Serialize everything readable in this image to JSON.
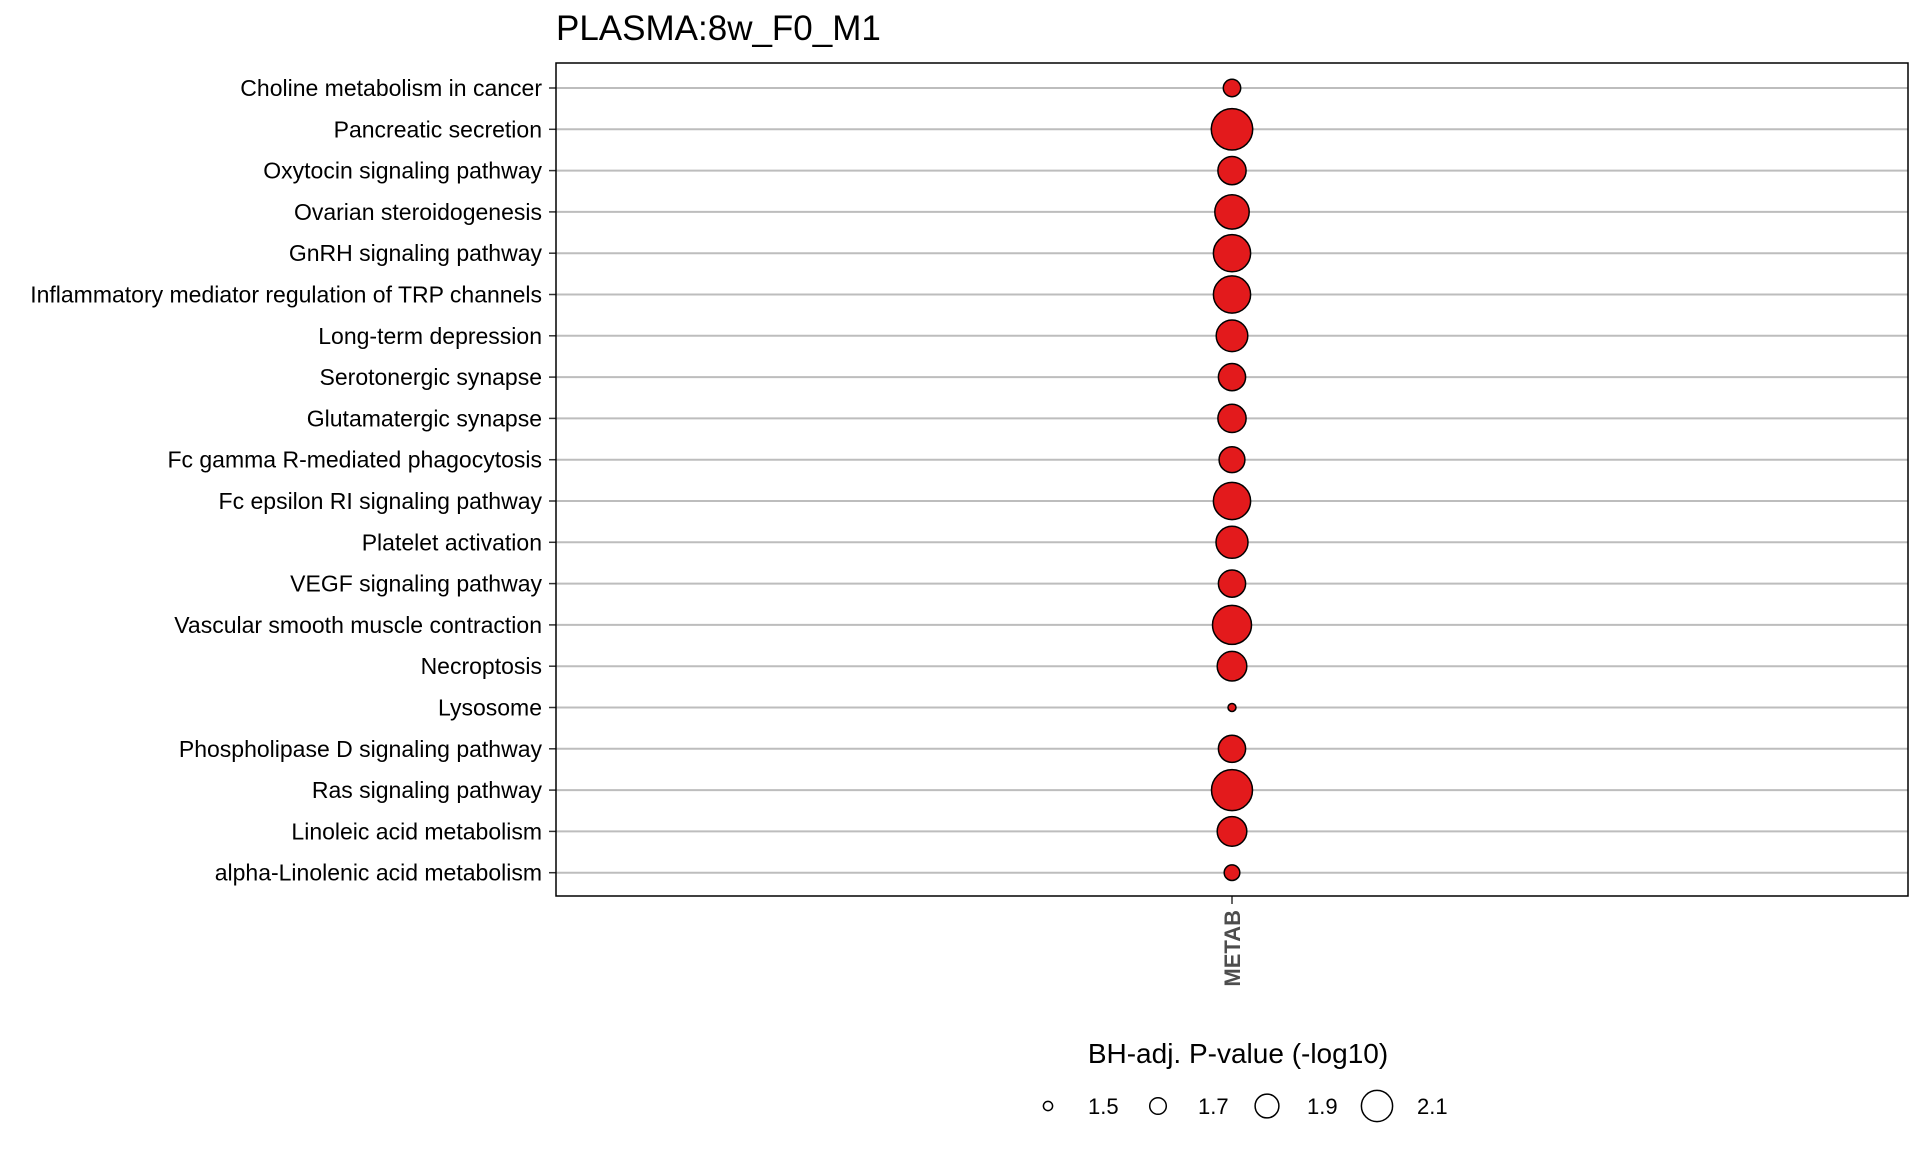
{
  "chart_data": {
    "type": "scatter",
    "title": "PLASMA:8w_F0_M1",
    "x_categories": [
      "METAB"
    ],
    "y_categories": [
      "Choline metabolism in cancer",
      "Pancreatic secretion",
      "Oxytocin signaling pathway",
      "Ovarian steroidogenesis",
      "GnRH signaling pathway",
      "Inflammatory mediator regulation of TRP channels",
      "Long-term depression",
      "Serotonergic synapse",
      "Glutamatergic synapse",
      "Fc gamma R-mediated phagocytosis",
      "Fc epsilon RI signaling pathway",
      "Platelet activation",
      "VEGF signaling pathway",
      "Vascular smooth muscle contraction",
      "Necroptosis",
      "Lysosome",
      "Phospholipase D signaling pathway",
      "Ras signaling pathway",
      "Linoleic acid metabolism",
      "alpha-Linolenic acid metabolism"
    ],
    "size_variable": "BH-adj. P-value (-log10)",
    "points": [
      {
        "x": "METAB",
        "y": "Choline metabolism in cancer",
        "size_value": 1.62
      },
      {
        "x": "METAB",
        "y": "Pancreatic secretion",
        "size_value": 2.13
      },
      {
        "x": "METAB",
        "y": "Oxytocin signaling pathway",
        "size_value": 1.85
      },
      {
        "x": "METAB",
        "y": "Ovarian steroidogenesis",
        "size_value": 1.98
      },
      {
        "x": "METAB",
        "y": "GnRH signaling pathway",
        "size_value": 2.04
      },
      {
        "x": "METAB",
        "y": "Inflammatory mediator regulation of TRP channels",
        "size_value": 2.04
      },
      {
        "x": "METAB",
        "y": "Long-term depression",
        "size_value": 1.92
      },
      {
        "x": "METAB",
        "y": "Serotonergic synapse",
        "size_value": 1.83
      },
      {
        "x": "METAB",
        "y": "Glutamatergic synapse",
        "size_value": 1.85
      },
      {
        "x": "METAB",
        "y": "Fc gamma R-mediated phagocytosis",
        "size_value": 1.8
      },
      {
        "x": "METAB",
        "y": "Fc epsilon RI signaling pathway",
        "size_value": 2.04
      },
      {
        "x": "METAB",
        "y": "Platelet activation",
        "size_value": 1.93
      },
      {
        "x": "METAB",
        "y": "VEGF signaling pathway",
        "size_value": 1.83
      },
      {
        "x": "METAB",
        "y": "Vascular smooth muscle contraction",
        "size_value": 2.08
      },
      {
        "x": "METAB",
        "y": "Necroptosis",
        "size_value": 1.88
      },
      {
        "x": "METAB",
        "y": "Lysosome",
        "size_value": 1.42
      },
      {
        "x": "METAB",
        "y": "Phospholipase D signaling pathway",
        "size_value": 1.83
      },
      {
        "x": "METAB",
        "y": "Ras signaling pathway",
        "size_value": 2.12
      },
      {
        "x": "METAB",
        "y": "Linoleic acid metabolism",
        "size_value": 1.88
      },
      {
        "x": "METAB",
        "y": "alpha-Linolenic acid metabolism",
        "size_value": 1.58
      }
    ],
    "point_color": "#e31a1c",
    "legend": {
      "title": "BH-adj. P-value (-log10)",
      "placement": "bottom",
      "breaks": [
        1.5,
        1.7,
        1.9,
        2.1
      ],
      "labels": [
        "1.5",
        "1.7",
        "1.9",
        "2.1"
      ]
    },
    "grid": "horizontal"
  }
}
